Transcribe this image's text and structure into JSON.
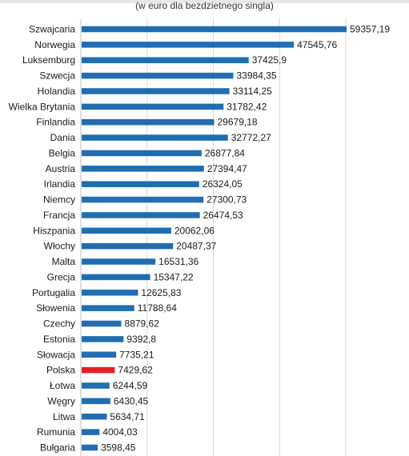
{
  "subtitle": "(w euro dla bezdzietnego singla)",
  "colors": {
    "bar": "#1f6db3",
    "highlight": "#e31e24",
    "grid": "#d9d9d9",
    "text": "#1a1a1a"
  },
  "chart_data": {
    "type": "bar",
    "orientation": "horizontal",
    "subtitle": "(w euro dla bezdzietnego singla)",
    "xlim": [
      0,
      60000
    ],
    "grid": true,
    "highlight": "Polska",
    "categories": [
      "Szwajcaria",
      "Norwegia",
      "Luksemburg",
      "Szwecja",
      "Holandia",
      "Wielka Brytania",
      "Finlandia",
      "Dania",
      "Belgia",
      "Austria",
      "Irlandia",
      "Niemcy",
      "Francja",
      "Hiszpania",
      "Włochy",
      "Malta",
      "Grecja",
      "Portugalia",
      "Słowenia",
      "Czechy",
      "Estonia",
      "Słowacja",
      "Polska",
      "Łotwa",
      "Węgry",
      "Litwa",
      "Rumunia",
      "Bułgaria"
    ],
    "values": [
      59357.19,
      47545.76,
      37425.9,
      33984.35,
      33114.25,
      31782.42,
      29679.18,
      32772.27,
      26877.84,
      27394.47,
      26324.05,
      27300.73,
      26474.53,
      20062.06,
      20487.37,
      16531.36,
      15347.22,
      12625.83,
      11788.64,
      8879.62,
      9392.8,
      7735.21,
      7429.62,
      6244.59,
      6430.45,
      5634.71,
      4004.03,
      3598.45
    ],
    "labels": [
      "59357,19",
      "47545,76",
      "37425,9",
      "33984,35",
      "33114,25",
      "31782,42",
      "29679,18",
      "32772,27",
      "26877,84",
      "27394,47",
      "26324,05",
      "27300,73",
      "26474,53",
      "20062,06",
      "20487,37",
      "16531,36",
      "15347,22",
      "12625,83",
      "11788,64",
      "8879,62",
      "9392,8",
      "7735,21",
      "7429,62",
      "6244,59",
      "6430,45",
      "5634,71",
      "4004,03",
      "3598,45"
    ]
  }
}
